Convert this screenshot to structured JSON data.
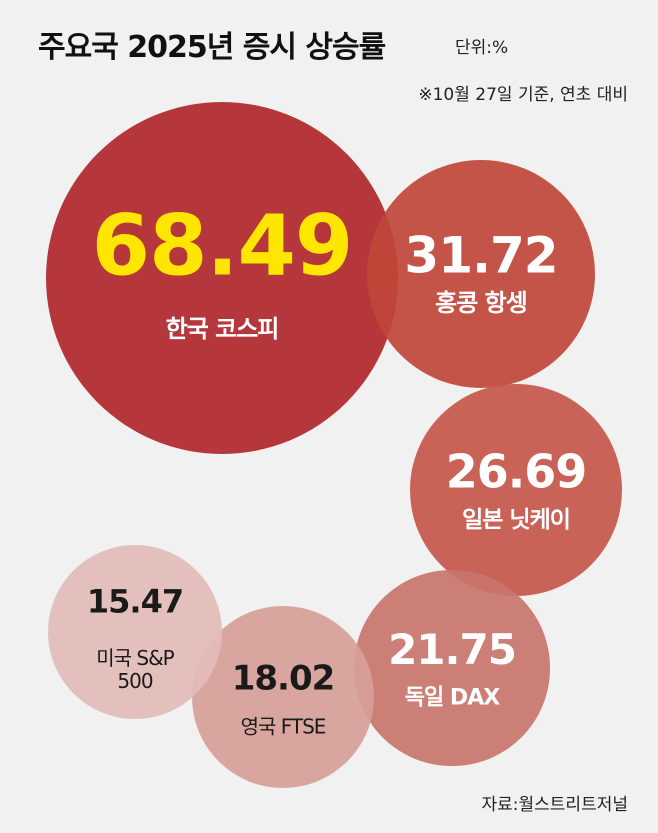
{
  "title": "주요국 2025년 증시 상승률",
  "unit": "단위:%",
  "note": "※10월 27일 기준, 연초 대비",
  "source": "자료:월스트리트저널",
  "chart_data": {
    "type": "bubble",
    "categories": [
      "한국 코스피",
      "홍콩 항셍",
      "일본 닛케이",
      "독일 DAX",
      "영국 FTSE",
      "미국 S&P 500"
    ],
    "values": [
      68.49,
      31.72,
      26.69,
      21.75,
      18.02,
      15.47
    ],
    "colors": [
      "#b0262b",
      "#c0463a",
      "#c6574b",
      "#c9756b",
      "#d79f98",
      "#e3bcb7"
    ]
  }
}
